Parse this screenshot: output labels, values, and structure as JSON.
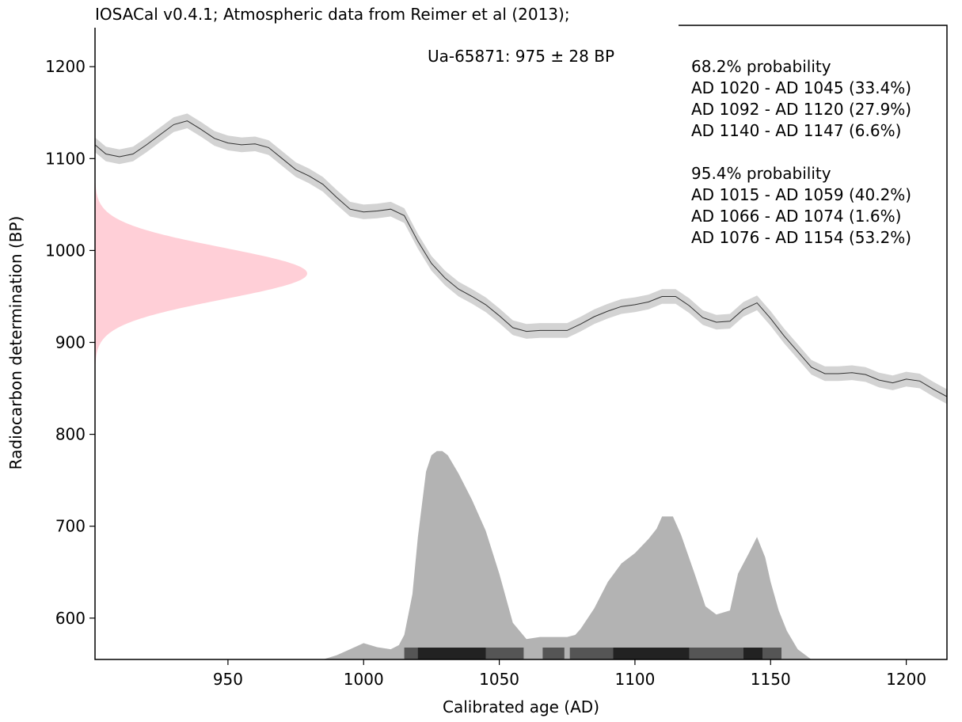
{
  "chart_data": {
    "type": "area",
    "title": "IOSACal v0.4.1; Atmospheric data from Reimer et al (2013);",
    "annotation": "Ua-65871: 975 ± 28 BP",
    "xlabel": "Calibrated age (AD)",
    "ylabel": "Radiocarbon determination (BP)",
    "xlim": [
      901,
      1215
    ],
    "ylim": [
      555,
      1245
    ],
    "xticks": [
      950,
      1000,
      1050,
      1100,
      1150,
      1200
    ],
    "yticks": [
      600,
      700,
      800,
      900,
      1000,
      1100,
      1200
    ],
    "grid": false,
    "probability_text": [
      "68.2% probability",
      "AD 1020 - AD 1045 (33.4%)",
      "AD 1092 - AD 1120 (27.9%)",
      "AD 1140 - AD 1147 (6.6%)",
      "",
      "95.4% probability",
      "AD 1015 - AD 1059 (40.2%)",
      "AD 1066 - AD 1074 (1.6%)",
      "AD 1076 - AD 1154 (53.2%)"
    ],
    "radiocarbon_date": {
      "mean": 975,
      "sigma": 28
    },
    "calibration_curve": {
      "x": [
        901,
        905,
        910,
        915,
        920,
        925,
        930,
        935,
        940,
        945,
        950,
        955,
        960,
        965,
        970,
        975,
        980,
        985,
        990,
        995,
        1000,
        1005,
        1010,
        1015,
        1020,
        1025,
        1030,
        1035,
        1040,
        1045,
        1050,
        1055,
        1060,
        1065,
        1070,
        1075,
        1080,
        1085,
        1090,
        1095,
        1100,
        1105,
        1110,
        1115,
        1120,
        1125,
        1130,
        1135,
        1140,
        1145,
        1150,
        1155,
        1160,
        1165,
        1170,
        1175,
        1180,
        1185,
        1190,
        1195,
        1200,
        1205,
        1210,
        1215
      ],
      "y": [
        1115,
        1105,
        1102,
        1105,
        1115,
        1126,
        1137,
        1141,
        1132,
        1122,
        1117,
        1115,
        1116,
        1112,
        1100,
        1088,
        1081,
        1072,
        1058,
        1045,
        1042,
        1043,
        1045,
        1038,
        1010,
        986,
        970,
        958,
        950,
        941,
        929,
        916,
        912,
        913,
        913,
        913,
        920,
        928,
        934,
        939,
        941,
        944,
        950,
        950,
        940,
        927,
        922,
        923,
        936,
        943,
        926,
        907,
        890,
        873,
        866,
        866,
        867,
        865,
        859,
        856,
        860,
        858,
        849,
        841
      ],
      "sigma": 8
    },
    "probability_distribution": {
      "x": [
        985,
        990,
        995,
        1000,
        1005,
        1010,
        1013,
        1015,
        1018,
        1020,
        1023,
        1025,
        1027,
        1029,
        1031,
        1035,
        1040,
        1045,
        1050,
        1055,
        1060,
        1065,
        1070,
        1075,
        1078,
        1080,
        1085,
        1090,
        1095,
        1100,
        1105,
        1108,
        1110,
        1114,
        1117,
        1122,
        1126,
        1130,
        1135,
        1138,
        1142,
        1145,
        1148,
        1150,
        1153,
        1156,
        1160,
        1165
      ],
      "y": [
        0.0,
        0.02,
        0.05,
        0.08,
        0.06,
        0.05,
        0.07,
        0.12,
        0.32,
        0.6,
        0.92,
        1.0,
        1.02,
        1.02,
        1.0,
        0.91,
        0.78,
        0.63,
        0.42,
        0.18,
        0.1,
        0.11,
        0.11,
        0.11,
        0.12,
        0.15,
        0.25,
        0.38,
        0.47,
        0.52,
        0.59,
        0.64,
        0.7,
        0.7,
        0.61,
        0.42,
        0.26,
        0.22,
        0.24,
        0.42,
        0.52,
        0.6,
        0.5,
        0.38,
        0.24,
        0.14,
        0.05,
        0.0
      ]
    },
    "ranges_95": [
      [
        1015,
        1059
      ],
      [
        1066,
        1074
      ],
      [
        1076,
        1154
      ]
    ],
    "ranges_68": [
      [
        1020,
        1045
      ],
      [
        1092,
        1120
      ],
      [
        1140,
        1147
      ]
    ],
    "colors": {
      "curve_line": "#333333",
      "curve_band": "#d3d3d3",
      "date_distribution": "#ffb6c1",
      "calibrated_distribution": "#999999",
      "range_95": "#555555",
      "range_68": "#222222"
    }
  }
}
